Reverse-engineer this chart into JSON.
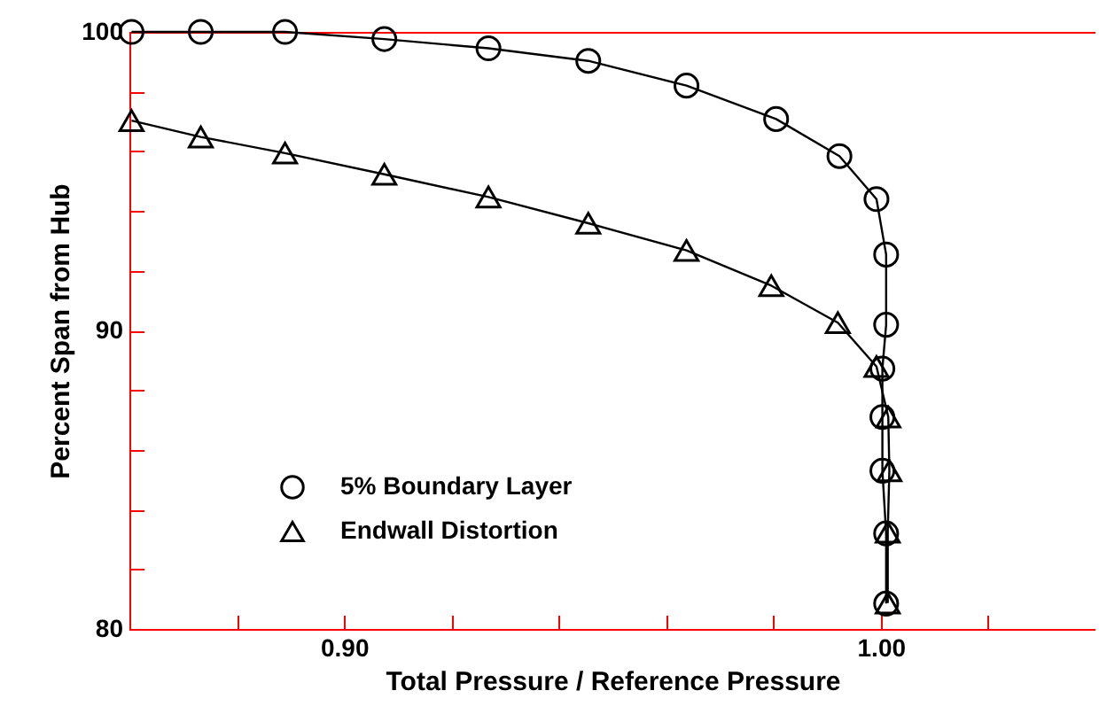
{
  "chart_data": {
    "type": "line",
    "xlabel": "Total Pressure / Reference Pressure",
    "ylabel": "Percent Span from Hub",
    "xlim": [
      0.86,
      1.04
    ],
    "ylim": [
      80,
      100
    ],
    "xticks": [
      {
        "value": 0.88,
        "label": null
      },
      {
        "value": 0.9,
        "label": "0.90"
      },
      {
        "value": 0.92,
        "label": null
      },
      {
        "value": 0.94,
        "label": null
      },
      {
        "value": 0.96,
        "label": null
      },
      {
        "value": 0.98,
        "label": null
      },
      {
        "value": 1.0,
        "label": "1.00"
      },
      {
        "value": 1.02,
        "label": null
      }
    ],
    "yticks": [
      80,
      {
        "value": 82,
        "label": null
      },
      {
        "value": 84,
        "label": null
      },
      {
        "value": 86,
        "label": null
      },
      {
        "value": 88,
        "label": null
      },
      90,
      {
        "value": 92,
        "label": null
      },
      {
        "value": 94,
        "label": null
      },
      {
        "value": 96,
        "label": null
      },
      {
        "value": 98,
        "label": null
      },
      100
    ],
    "grid": false,
    "legend": "bottom left",
    "series": [
      {
        "name": "5% Boundary Layer",
        "color": "#000000",
        "marker": "circle",
        "x": [
          0.8604,
          0.8733,
          0.889,
          0.9075,
          0.9269,
          0.9455,
          0.9638,
          0.9805,
          0.9923,
          0.9992,
          1.001,
          1.001,
          1.0003,
          1.0003,
          1.0003,
          1.001,
          1.001
        ],
        "values": [
          100,
          100,
          100,
          99.76,
          99.45,
          99.03,
          98.2,
          97.08,
          95.84,
          94.4,
          92.54,
          90.19,
          88.72,
          87.1,
          85.3,
          83.2,
          80.85
        ]
      },
      {
        "name": "Endwall Distortion",
        "color": "#000000",
        "marker": "triangle",
        "x": [
          0.8604,
          0.8733,
          0.889,
          0.9075,
          0.9269,
          0.9455,
          0.9638,
          0.9796,
          0.992,
          0.9992,
          1.0014,
          1.0016,
          1.0013,
          1.0013
        ],
        "values": [
          97.03,
          96.48,
          95.94,
          95.23,
          94.47,
          93.59,
          92.68,
          91.5,
          90.26,
          88.79,
          87.1,
          85.3,
          83.24,
          80.87
        ]
      }
    ]
  }
}
